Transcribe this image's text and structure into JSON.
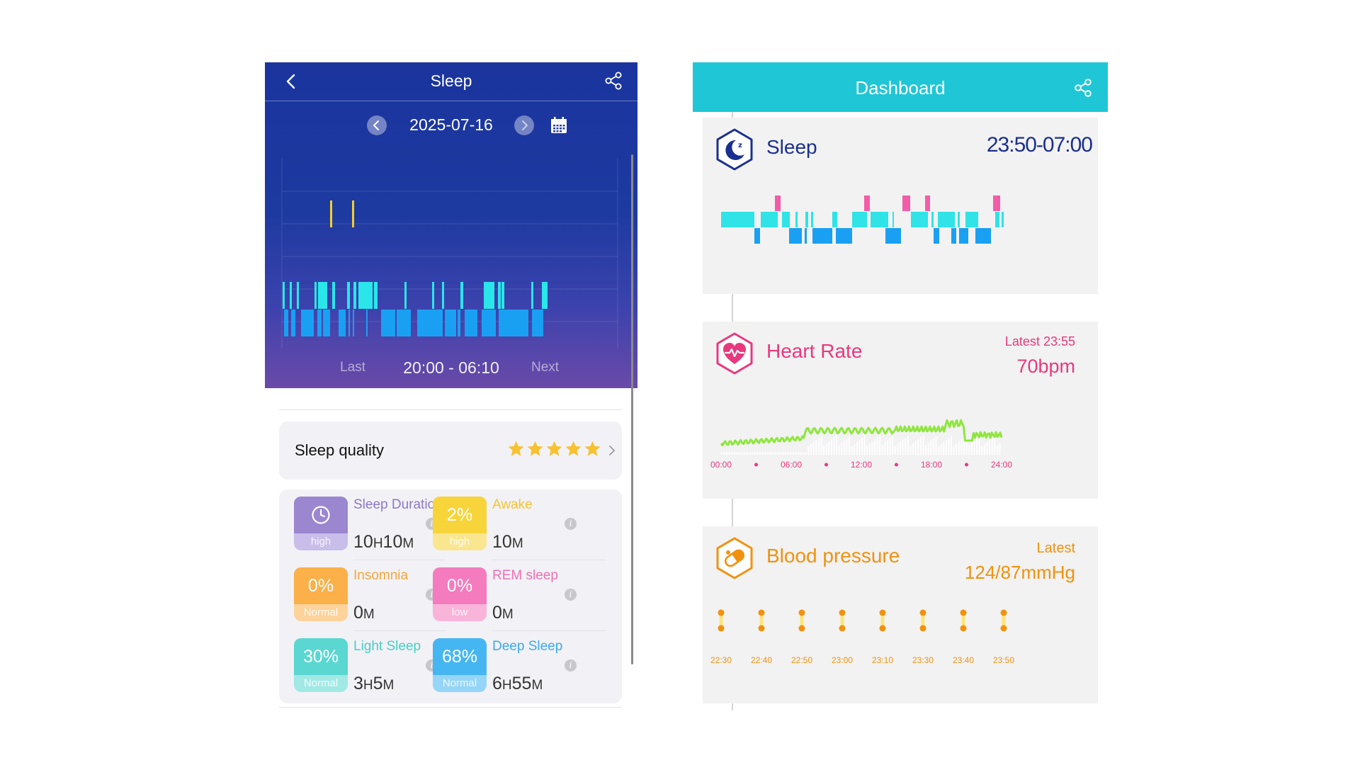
{
  "left": {
    "title": "Sleep",
    "date": "2025-07-16",
    "range": "20:00 - 06:10",
    "last_label": "Last",
    "next_label": "Next",
    "quality_label": "Sleep quality",
    "quality_stars": 5,
    "colors": {
      "awake": "#f5cf2a",
      "light": "#2ae6ea",
      "deep": "#1aa0f2"
    },
    "stats": [
      {
        "title": "Sleep Duration",
        "badge_icon": "clock-icon",
        "level": "high",
        "value_num1": "10",
        "value_unit1": "H",
        "value_num2": "10",
        "value_unit2": "M",
        "color": "#9b86d0",
        "text_color": "#8d78c6"
      },
      {
        "title": "Awake",
        "badge": "2%",
        "level": "high",
        "value_num1": "10",
        "value_unit1": "M",
        "value_num2": "",
        "value_unit2": "",
        "color": "#f7d43a",
        "text_color": "#f4c430"
      },
      {
        "title": "Insomnia",
        "badge": "0%",
        "level": "Normal",
        "value_num1": "0",
        "value_unit1": "M",
        "value_num2": "",
        "value_unit2": "",
        "color": "#fbb04a",
        "text_color": "#f4a63c"
      },
      {
        "title": "REM sleep",
        "badge": "0%",
        "level": "low",
        "value_num1": "0",
        "value_unit1": "M",
        "value_num2": "",
        "value_unit2": "",
        "color": "#f47bbd",
        "text_color": "#f06fb4"
      },
      {
        "title": "Light Sleep",
        "badge": "30%",
        "level": "Normal",
        "value_num1": "3",
        "value_unit1": "H",
        "value_num2": "5",
        "value_unit2": "M",
        "color": "#5ad7d1",
        "text_color": "#45cfc8"
      },
      {
        "title": "Deep Sleep",
        "badge": "68%",
        "level": "Normal",
        "value_num1": "6",
        "value_unit1": "H",
        "value_num2": "55",
        "value_unit2": "M",
        "color": "#46b6f3",
        "text_color": "#3aaaf0"
      }
    ]
  },
  "dashboard": {
    "title": "Dashboard",
    "sleep": {
      "title": "Sleep",
      "range": "23:50-07:00",
      "colors": {
        "rem": "#f25ca8",
        "light": "#2fe3e6",
        "deep": "#1aa0f2"
      }
    },
    "heart_rate": {
      "title": "Heart Rate",
      "latest_label": "Latest 23:55",
      "value": "70bpm",
      "x_ticks": [
        "00:00",
        "06:00",
        "12:00",
        "18:00",
        "24:00"
      ],
      "line_color": "#8ee63c",
      "accent": "#e8387e"
    },
    "blood_pressure": {
      "title": "Blood pressure",
      "latest_label": "Latest",
      "value": "124/87mmHg",
      "x_ticks": [
        "22:30",
        "22:40",
        "22:50",
        "23:00",
        "23:10",
        "23:30",
        "23:40",
        "23:50"
      ],
      "accent": "#f0920e"
    }
  }
}
